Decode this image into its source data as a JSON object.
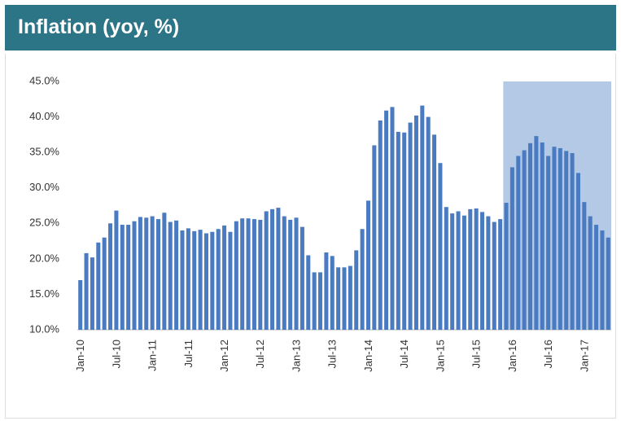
{
  "chart_data": {
    "type": "bar",
    "title": "Inflation (yoy, %)",
    "color": "#4a7bc0",
    "categories": [
      "Jan-10",
      null,
      null,
      null,
      null,
      null,
      "Jul-10",
      null,
      null,
      null,
      null,
      null,
      "Jan-11",
      null,
      null,
      null,
      null,
      null,
      "Jul-11",
      null,
      null,
      null,
      null,
      null,
      "Jan-12",
      null,
      null,
      null,
      null,
      null,
      "Jul-12",
      null,
      null,
      null,
      null,
      null,
      "Jan-13",
      null,
      null,
      null,
      null,
      null,
      "Jul-13",
      null,
      null,
      null,
      null,
      null,
      "Jan-14",
      null,
      null,
      null,
      null,
      null,
      "Jul-14",
      null,
      null,
      null,
      null,
      null,
      "Jan-15",
      null,
      null,
      null,
      null,
      null,
      "Jul-15",
      null,
      null,
      null,
      null,
      null,
      "Jan-16",
      null,
      null,
      null,
      null,
      null,
      "Jul-16",
      null,
      null,
      null,
      null,
      null,
      "Jan-17",
      null,
      null,
      null,
      null
    ],
    "values": [
      17.0,
      20.8,
      20.2,
      22.3,
      23.0,
      25.0,
      26.8,
      24.8,
      24.8,
      25.3,
      25.9,
      25.8,
      26.0,
      25.6,
      26.5,
      25.2,
      25.4,
      24.0,
      24.3,
      23.9,
      24.1,
      23.6,
      23.8,
      24.2,
      24.7,
      23.8,
      25.3,
      25.7,
      25.7,
      25.6,
      25.5,
      26.7,
      27.0,
      27.2,
      26.0,
      25.5,
      25.8,
      24.5,
      20.5,
      18.1,
      18.1,
      20.9,
      20.4,
      18.8,
      18.8,
      19.0,
      21.2,
      24.2,
      28.2,
      36.0,
      39.5,
      40.9,
      41.4,
      37.9,
      37.8,
      39.2,
      40.2,
      41.6,
      40.0,
      37.5,
      33.5,
      27.3,
      26.4,
      26.7,
      26.1,
      27.0,
      27.1,
      26.6,
      26.0,
      25.2,
      25.6,
      27.9,
      32.9,
      34.5,
      35.3,
      36.3,
      37.3,
      36.4,
      34.5,
      35.8,
      35.6,
      35.2,
      34.9,
      32.1,
      28.0,
      26.0,
      24.8,
      24.0,
      23.0
    ],
    "ylim": [
      10,
      45
    ],
    "yticks": [
      {
        "value": 10,
        "label": "10.0%"
      },
      {
        "value": 15,
        "label": "15.0%"
      },
      {
        "value": 20,
        "label": "20.0%"
      },
      {
        "value": 25,
        "label": "25.0%"
      },
      {
        "value": 30,
        "label": "30.0%"
      },
      {
        "value": 35,
        "label": "35.0%"
      },
      {
        "value": 40,
        "label": "40.0%"
      },
      {
        "value": 45,
        "label": "45.0%"
      }
    ],
    "highlight_color": "#b3c9e6"
  }
}
